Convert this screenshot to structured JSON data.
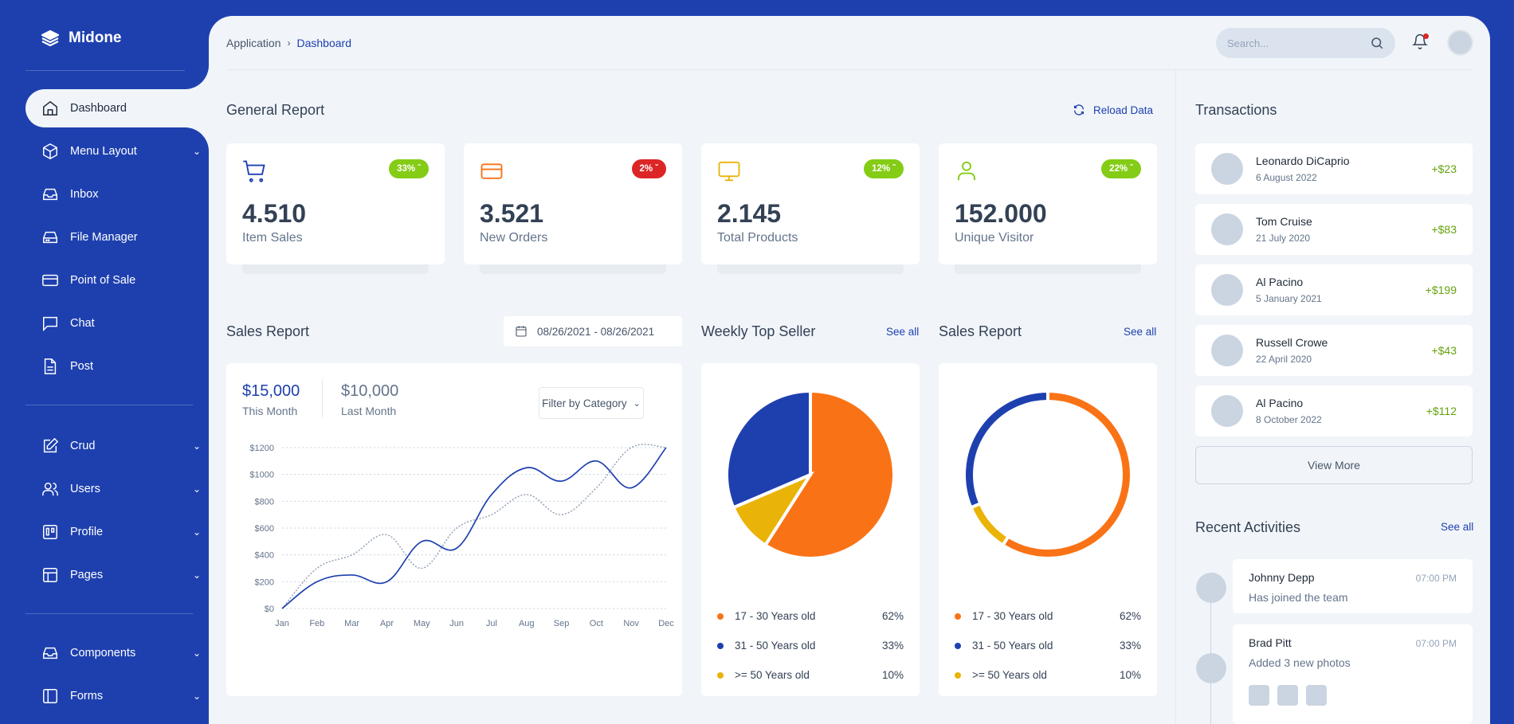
{
  "app": {
    "name": "Midone"
  },
  "sidebar": {
    "items": [
      {
        "label": "Dashboard"
      },
      {
        "label": "Menu Layout"
      },
      {
        "label": "Inbox"
      },
      {
        "label": "File Manager"
      },
      {
        "label": "Point of Sale"
      },
      {
        "label": "Chat"
      },
      {
        "label": "Post"
      },
      {
        "label": "Crud"
      },
      {
        "label": "Users"
      },
      {
        "label": "Profile"
      },
      {
        "label": "Pages"
      },
      {
        "label": "Components"
      },
      {
        "label": "Forms"
      }
    ]
  },
  "breadcrumb": {
    "parent": "Application",
    "current": "Dashboard"
  },
  "search": {
    "placeholder": "Search..."
  },
  "general_report": {
    "title": "General Report",
    "reload": "Reload Data",
    "cards": [
      {
        "value": "4.510",
        "label": "Item Sales",
        "badge": "33%",
        "trend": "up",
        "color": "#84cc16"
      },
      {
        "value": "3.521",
        "label": "New Orders",
        "badge": "2%",
        "trend": "down",
        "color": "#dc2626"
      },
      {
        "value": "2.145",
        "label": "Total Products",
        "badge": "12%",
        "trend": "up",
        "color": "#84cc16"
      },
      {
        "value": "152.000",
        "label": "Unique Visitor",
        "badge": "22%",
        "trend": "up",
        "color": "#84cc16"
      }
    ]
  },
  "sales_report": {
    "title": "Sales Report",
    "date_range": "08/26/2021 - 08/26/2021",
    "this_month_value": "$15,000",
    "this_month_label": "This Month",
    "last_month_value": "$10,000",
    "last_month_label": "Last Month",
    "filter": "Filter by Category"
  },
  "chart_data": {
    "type": "line",
    "categories": [
      "Jan",
      "Feb",
      "Mar",
      "Apr",
      "May",
      "Jun",
      "Jul",
      "Aug",
      "Sep",
      "Oct",
      "Nov",
      "Dec"
    ],
    "y_ticks": [
      "$0",
      "$200",
      "$400",
      "$600",
      "$800",
      "$1000",
      "$1200"
    ],
    "ylim": [
      0,
      1200
    ],
    "series": [
      {
        "values": [
          0,
          200,
          250,
          200,
          500,
          450,
          850,
          1050,
          950,
          1100,
          900,
          1200
        ],
        "color": "#1e40af",
        "style": "solid"
      },
      {
        "values": [
          0,
          300,
          400,
          550,
          300,
          600,
          700,
          850,
          700,
          900,
          1200,
          1200
        ],
        "color": "#94a3b8",
        "style": "dotted"
      }
    ],
    "grid": true
  },
  "weekly_top_seller": {
    "title": "Weekly Top Seller",
    "see_all": "See all",
    "legend": [
      {
        "label": "17 - 30 Years old",
        "pct": "62%",
        "color": "#f97316"
      },
      {
        "label": "31 - 50 Years old",
        "pct": "33%",
        "color": "#1e40af"
      },
      {
        "label": ">= 50 Years old",
        "pct": "10%",
        "color": "#eab308"
      }
    ]
  },
  "sales_report2": {
    "title": "Sales Report",
    "see_all": "See all",
    "legend": [
      {
        "label": "17 - 30 Years old",
        "pct": "62%",
        "color": "#f97316"
      },
      {
        "label": "31 - 50 Years old",
        "pct": "33%",
        "color": "#1e40af"
      },
      {
        "label": ">= 50 Years old",
        "pct": "10%",
        "color": "#eab308"
      }
    ]
  },
  "transactions": {
    "title": "Transactions",
    "items": [
      {
        "name": "Leonardo DiCaprio",
        "date": "6 August 2022",
        "amount": "+$23"
      },
      {
        "name": "Tom Cruise",
        "date": "21 July 2020",
        "amount": "+$83"
      },
      {
        "name": "Al Pacino",
        "date": "5 January 2021",
        "amount": "+$199"
      },
      {
        "name": "Russell Crowe",
        "date": "22 April 2020",
        "amount": "+$43"
      },
      {
        "name": "Al Pacino",
        "date": "8 October 2022",
        "amount": "+$112"
      }
    ],
    "view_more": "View More"
  },
  "recent_activities": {
    "title": "Recent Activities",
    "see_all": "See all",
    "items": [
      {
        "name": "Johnny Depp",
        "time": "07:00 PM",
        "desc": "Has joined the team"
      },
      {
        "name": "Brad Pitt",
        "time": "07:00 PM",
        "desc": "Added 3 new photos"
      }
    ]
  }
}
